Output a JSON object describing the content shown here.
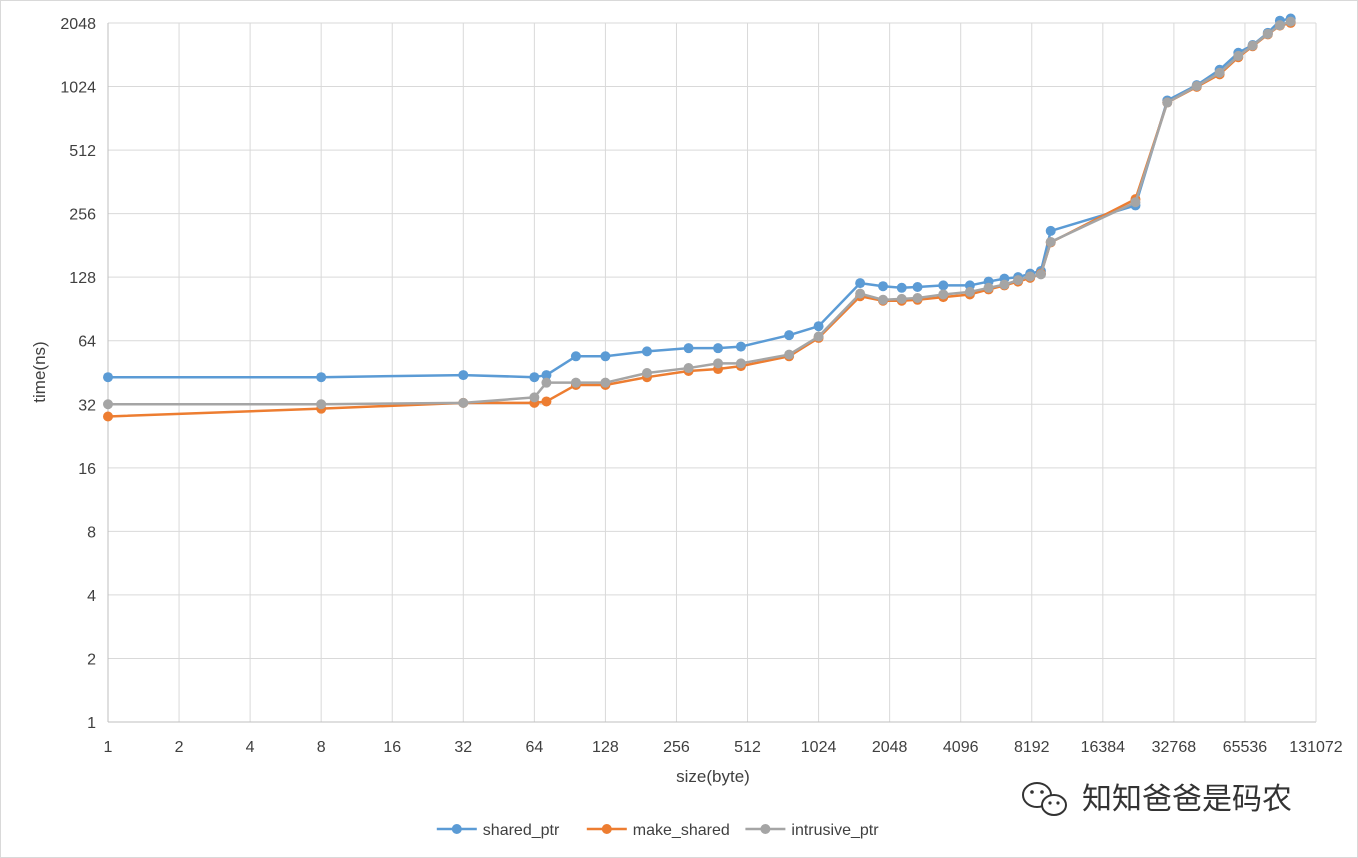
{
  "chart_data": {
    "type": "line",
    "xscale": "log2",
    "yscale": "log2",
    "xlabel": "size(byte)",
    "ylabel": "time(ns)",
    "xlim": [
      1,
      131072
    ],
    "ylim": [
      1,
      2048
    ],
    "x_ticks": [
      "1",
      "2",
      "4",
      "8",
      "16",
      "32",
      "64",
      "128",
      "256",
      "512",
      "1024",
      "2048",
      "4096",
      "8192",
      "16384",
      "32768",
      "65536",
      "131072"
    ],
    "y_ticks": [
      "1",
      "2",
      "4",
      "8",
      "16",
      "32",
      "64",
      "128",
      "256",
      "512",
      "1024",
      "2048"
    ],
    "grid": true,
    "legend_position": "bottom",
    "series": [
      {
        "name": "shared_ptr",
        "color": "#5b9bd5",
        "x": [
          1,
          8,
          32,
          64,
          72,
          96,
          128,
          192,
          288,
          384,
          480,
          768,
          1024,
          1536,
          1920,
          2304,
          2688,
          3456,
          4480,
          5376,
          6272,
          7168,
          8064,
          8960,
          9856,
          22528,
          30720,
          40960,
          51200,
          61440,
          70656,
          81920,
          92160,
          102400
        ],
        "y": [
          43,
          43,
          44,
          43,
          44,
          54,
          54,
          57,
          59,
          59,
          60,
          68,
          75,
          120,
          116,
          114,
          115,
          117,
          117,
          122,
          126,
          128,
          133,
          137,
          212,
          280,
          880,
          1040,
          1230,
          1480,
          1610,
          1840,
          2100,
          2150
        ]
      },
      {
        "name": "make_shared",
        "color": "#ed7d31",
        "x": [
          1,
          8,
          32,
          64,
          72,
          96,
          128,
          192,
          288,
          384,
          480,
          768,
          1024,
          1536,
          1920,
          2304,
          2688,
          3456,
          4480,
          5376,
          6272,
          7168,
          8064,
          8960,
          9856,
          22528,
          30720,
          40960,
          51200,
          61440,
          70656,
          81920,
          92160,
          102400
        ],
        "y": [
          28,
          30.5,
          32.5,
          32.5,
          33,
          39.5,
          39.5,
          43,
          46,
          47,
          48.5,
          54,
          66,
          104,
          99,
          99,
          100,
          103,
          106,
          112,
          117,
          122,
          127,
          133,
          187,
          300,
          860,
          1020,
          1170,
          1410,
          1590,
          1810,
          1990,
          2050
        ]
      },
      {
        "name": "intrusive_ptr",
        "color": "#a5a5a5",
        "x": [
          1,
          8,
          32,
          64,
          72,
          96,
          128,
          192,
          288,
          384,
          480,
          768,
          1024,
          1536,
          1920,
          2304,
          2688,
          3456,
          4480,
          5376,
          6272,
          7168,
          8064,
          8960,
          9856,
          22528,
          30720,
          40960,
          51200,
          61440,
          70656,
          81920,
          92160,
          102400
        ],
        "y": [
          32,
          32,
          32.5,
          34.5,
          40.5,
          40.5,
          40.5,
          45,
          47.5,
          50,
          50,
          55,
          67,
          107,
          100,
          101,
          102,
          106,
          109,
          114,
          118,
          124,
          129,
          132,
          188,
          290,
          860,
          1030,
          1190,
          1430,
          1600,
          1820,
          2000,
          2080
        ]
      }
    ]
  },
  "watermark": {
    "text": "知知爸爸是码农",
    "icon": "wechat-icon"
  }
}
